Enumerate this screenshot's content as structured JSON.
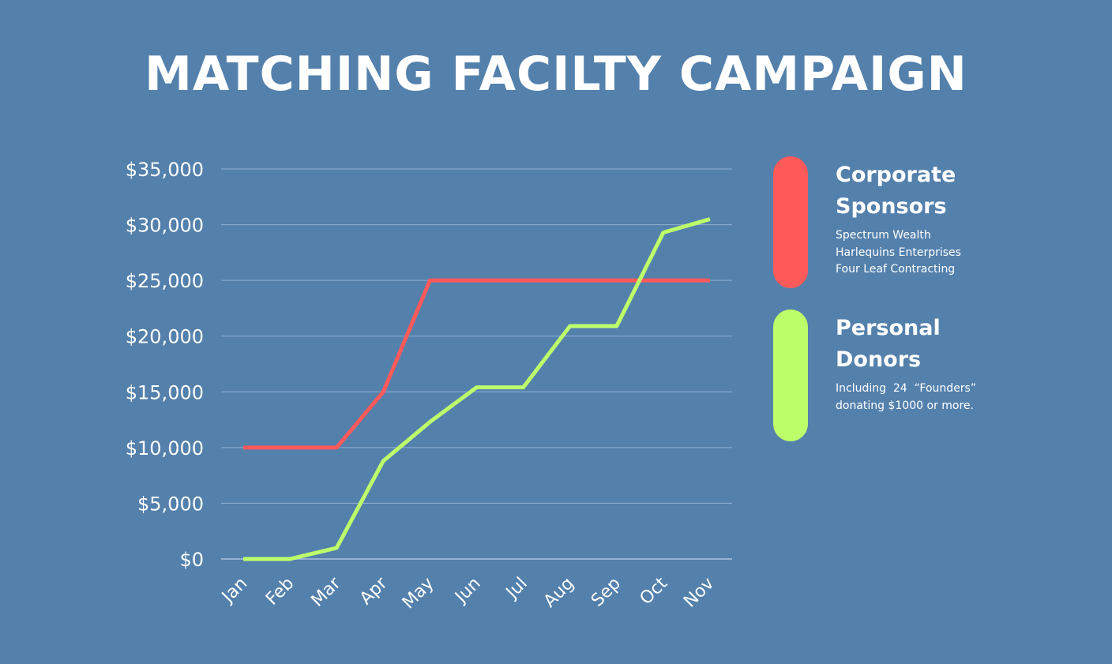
{
  "title": "MATCHING FACILTY CAMPAIGN",
  "colors": {
    "background": "#5480AC",
    "corporate": "#FF5A5A",
    "personal": "#BDFF6B",
    "grid": "#8FB1D3"
  },
  "legend": [
    {
      "name_line1": "Corporate",
      "name_line2": "Sponsors",
      "details": [
        "Spectrum Wealth",
        "Harlequins Enterprises",
        "Four Leaf Contracting"
      ]
    },
    {
      "name_line1": "Personal",
      "name_line2": "Donors",
      "details": [
        "Including  24  “Founders”",
        "donating $1000 or more."
      ]
    }
  ],
  "chart_data": {
    "type": "line",
    "title": "MATCHING FACILTY CAMPAIGN",
    "categories": [
      "Jan",
      "Feb",
      "Mar",
      "Apr",
      "May",
      "Jun",
      "Jul",
      "Aug",
      "Sep",
      "Oct",
      "Nov"
    ],
    "y_ticks": [
      "$0",
      "$5,000",
      "$10,000",
      "$15,000",
      "$20,000",
      "$25,000",
      "$30,000",
      "$35,000"
    ],
    "ylim": [
      0,
      35000
    ],
    "grid": true,
    "legend_position": "right",
    "series": [
      {
        "name": "Corporate Sponsors",
        "color": "#FF5A5A",
        "values": [
          10000,
          10000,
          10000,
          15000,
          25000,
          25000,
          25000,
          25000,
          25000,
          25000,
          25000
        ]
      },
      {
        "name": "Personal Donors",
        "color": "#BDFF6B",
        "values": [
          0,
          0,
          1000,
          8800,
          12300,
          15400,
          15400,
          20900,
          20900,
          29300,
          30500
        ]
      }
    ]
  }
}
